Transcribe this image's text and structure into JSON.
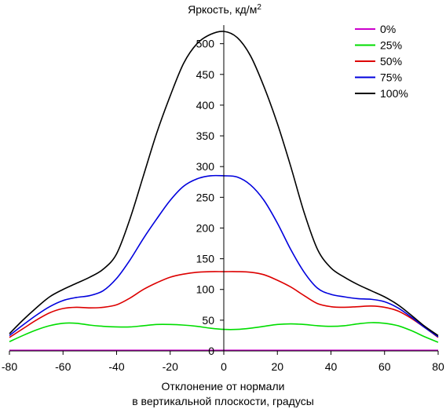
{
  "chart_data": {
    "type": "line",
    "title": "Яркость, кд/м",
    "title_superscript": "2",
    "xlabel_line1": "Отклонение от нормали",
    "xlabel_line2": "в вертикальной плоскости, градусы",
    "ylabel": "",
    "xlim": [
      -80,
      80
    ],
    "ylim": [
      0,
      520
    ],
    "x_ticks": [
      -80,
      -60,
      -40,
      -20,
      0,
      20,
      40,
      60,
      80
    ],
    "y_ticks": [
      0,
      50,
      100,
      150,
      200,
      250,
      300,
      350,
      400,
      450,
      500
    ],
    "grid": false,
    "legend_position": "top-right",
    "series": [
      {
        "name": "0%",
        "color": "#cc00cc",
        "x": [
          -80,
          -60,
          -40,
          -20,
          0,
          20,
          40,
          60,
          80
        ],
        "y": [
          1,
          1,
          1,
          1,
          1,
          1,
          1,
          1,
          1
        ]
      },
      {
        "name": "25%",
        "color": "#00dd00",
        "x": [
          -80,
          -75,
          -70,
          -65,
          -60,
          -55,
          -50,
          -45,
          -40,
          -35,
          -30,
          -25,
          -20,
          -15,
          -10,
          -5,
          0,
          5,
          10,
          15,
          20,
          25,
          30,
          35,
          40,
          45,
          50,
          55,
          60,
          65,
          70,
          75,
          80
        ],
        "y": [
          15,
          25,
          34,
          41,
          45,
          45,
          42,
          40,
          39,
          39,
          41,
          43,
          43,
          42,
          40,
          37,
          35,
          35,
          37,
          40,
          43,
          44,
          43,
          41,
          40,
          41,
          44,
          46,
          45,
          41,
          33,
          23,
          14
        ]
      },
      {
        "name": "50%",
        "color": "#dd0000",
        "x": [
          -80,
          -75,
          -70,
          -65,
          -60,
          -55,
          -50,
          -45,
          -40,
          -35,
          -30,
          -25,
          -20,
          -15,
          -10,
          -5,
          0,
          5,
          10,
          15,
          20,
          25,
          30,
          35,
          40,
          45,
          50,
          55,
          60,
          65,
          70,
          75,
          80
        ],
        "y": [
          22,
          36,
          50,
          62,
          69,
          71,
          70,
          71,
          75,
          86,
          100,
          111,
          120,
          125,
          128,
          129,
          129,
          129,
          128,
          124,
          115,
          104,
          90,
          77,
          72,
          71,
          72,
          73,
          71,
          65,
          53,
          38,
          22
        ]
      },
      {
        "name": "75%",
        "color": "#0000dd",
        "x": [
          -80,
          -75,
          -70,
          -65,
          -60,
          -55,
          -50,
          -45,
          -40,
          -35,
          -30,
          -25,
          -20,
          -15,
          -10,
          -5,
          0,
          5,
          10,
          15,
          20,
          25,
          30,
          35,
          40,
          45,
          50,
          55,
          60,
          65,
          70,
          75,
          80
        ],
        "y": [
          25,
          42,
          58,
          72,
          82,
          87,
          90,
          98,
          118,
          148,
          183,
          215,
          245,
          268,
          280,
          285,
          285,
          283,
          270,
          245,
          208,
          165,
          128,
          102,
          92,
          88,
          85,
          84,
          80,
          70,
          55,
          38,
          23
        ]
      },
      {
        "name": "100%",
        "color": "#000000",
        "x": [
          -80,
          -75,
          -70,
          -65,
          -60,
          -55,
          -50,
          -45,
          -40,
          -35,
          -30,
          -25,
          -20,
          -15,
          -10,
          -5,
          0,
          5,
          10,
          15,
          20,
          25,
          30,
          35,
          40,
          45,
          50,
          55,
          60,
          65,
          70,
          75,
          80
        ],
        "y": [
          28,
          50,
          70,
          88,
          100,
          110,
          120,
          133,
          158,
          215,
          285,
          355,
          415,
          468,
          500,
          515,
          520,
          510,
          480,
          430,
          370,
          300,
          225,
          165,
          135,
          120,
          108,
          98,
          88,
          75,
          58,
          40,
          25
        ]
      }
    ]
  }
}
